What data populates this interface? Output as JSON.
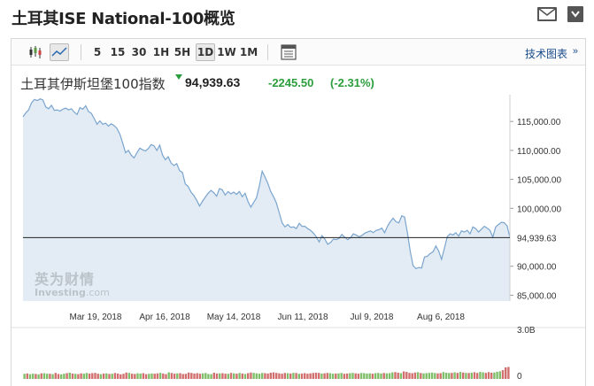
{
  "header": {
    "title": "土耳其ISE National-100概览",
    "mail_icon": "mail-icon",
    "expand_icon": "expand-arrow-icon"
  },
  "toolbar": {
    "chart_type_icons": [
      "candlestick-icon",
      "line-chart-icon"
    ],
    "intervals": [
      "5",
      "15",
      "30",
      "1H",
      "5H",
      "1D",
      "1W",
      "1M"
    ],
    "active_interval": "1D",
    "table_icon": "table-icon",
    "advanced_label": "技术图表",
    "advanced_arrow": "»"
  },
  "quote": {
    "name": "土耳其伊斯坦堡100指数",
    "price": "94,939.63",
    "change": "-2245.50",
    "change_pct": "(-2.31%)",
    "direction_icon": "down-triangle-icon"
  },
  "watermark": {
    "brand_cn": "英为财情",
    "brand_en": "Investing",
    "brand_suffix": ".com"
  },
  "colors": {
    "area_fill": "#e3ecf4",
    "line": "#7aa5cf",
    "last_line": "#222222",
    "up_bar": "#7fbf6a",
    "down_bar": "#d27070",
    "positive": "#2a9d3c"
  },
  "chart_data": {
    "type": "area",
    "x_ticks": [
      "Mar 19, 2018",
      "Apr 16, 2018",
      "May 14, 2018",
      "Jun 11, 2018",
      "Jul 9, 2018",
      "Aug 6, 2018"
    ],
    "y_ticks": [
      "115,000.00",
      "110,000.00",
      "105,000.00",
      "100,000.00",
      "90,000.00",
      "85,000.00"
    ],
    "y_tick_values": [
      115000,
      110000,
      105000,
      100000,
      90000,
      85000
    ],
    "ylim": [
      84000,
      119000
    ],
    "last_value": 94939.63,
    "last_value_label": "94,939.63",
    "volume_ticks": [
      "3.0B",
      "0"
    ],
    "volume_ylim": [
      0,
      3.0
    ],
    "series": [
      {
        "values": [
          115800,
          116500,
          117000,
          118200,
          118800,
          118600,
          118900,
          118700,
          117500,
          117200,
          117800,
          116900,
          117000,
          116800,
          117100,
          117300,
          117000,
          117200,
          116600,
          116200,
          117400,
          117100,
          117700,
          116700,
          116400,
          115500,
          114500,
          115100,
          114500,
          114700,
          114200,
          114600,
          114300,
          113800,
          112800,
          111300,
          109600,
          110000,
          109200,
          108700,
          109600,
          110400,
          110100,
          109900,
          110300,
          111000,
          110800,
          110000,
          110900,
          109200,
          108400,
          108900,
          107800,
          107400,
          107700,
          106500,
          106200,
          104200,
          103800,
          102800,
          102200,
          101400,
          100400,
          101200,
          101900,
          102600,
          103100,
          102700,
          102100,
          103400,
          103200,
          102300,
          102900,
          102500,
          102800,
          102400,
          102900,
          102000,
          102600,
          101200,
          100200,
          101000,
          101800,
          103900,
          106400,
          105400,
          104300,
          102900,
          102000,
          100900,
          99200,
          97500,
          96800,
          97200,
          96700,
          96800,
          96500,
          97400,
          96900,
          96900,
          96500,
          96200,
          95700,
          95100,
          94200,
          95300,
          94700,
          93800,
          94100,
          94700,
          94600,
          94800,
          95500,
          95000,
          94600,
          94900,
          95600,
          95400,
          95100,
          95300,
          95700,
          95900,
          96100,
          95800,
          96200,
          96300,
          96600,
          95800,
          96900,
          97700,
          98300,
          97700,
          97500,
          98700,
          98500,
          95800,
          92600,
          90100,
          89600,
          89800,
          89700,
          91600,
          91700,
          92200,
          92500,
          93500,
          92600,
          91200,
          93100,
          95100,
          95600,
          95400,
          95800,
          95200,
          96100,
          95900,
          96200,
          95600,
          96800,
          96500,
          95900,
          96400,
          96900,
          96600,
          96200,
          95000,
          96800,
          97200,
          97600,
          97500,
          97000,
          94939.63
        ]
      }
    ],
    "volume": {
      "values": [
        0.32,
        0.34,
        0.3,
        0.33,
        0.31,
        0.29,
        0.35,
        0.36,
        0.33,
        0.32,
        0.3,
        0.38,
        0.31,
        0.29,
        0.33,
        0.36,
        0.39,
        0.34,
        0.32,
        0.3,
        0.35,
        0.33,
        0.37,
        0.34,
        0.36,
        0.38,
        0.33,
        0.3,
        0.34,
        0.35,
        0.31,
        0.33,
        0.37,
        0.34,
        0.29,
        0.32,
        0.4,
        0.38,
        0.33,
        0.31,
        0.35,
        0.34,
        0.36,
        0.3,
        0.32,
        0.34,
        0.33,
        0.35,
        0.38,
        0.34,
        0.3,
        0.41,
        0.37,
        0.33,
        0.35,
        0.36,
        0.31,
        0.32,
        0.4,
        0.38,
        0.34,
        0.36,
        0.33,
        0.35,
        0.37,
        0.31,
        0.3,
        0.39,
        0.34,
        0.35,
        0.36,
        0.33,
        0.32,
        0.38,
        0.35,
        0.33,
        0.37,
        0.34,
        0.31,
        0.36,
        0.4,
        0.38,
        0.35,
        0.33,
        0.37,
        0.36,
        0.34,
        0.39,
        0.41,
        0.38,
        0.35,
        0.33,
        0.37,
        0.36,
        0.34,
        0.38,
        0.37,
        0.32,
        0.34,
        0.36,
        0.33,
        0.35,
        0.37,
        0.39,
        0.38,
        0.34,
        0.35,
        0.37,
        0.36,
        0.33,
        0.34,
        0.35,
        0.37,
        0.32,
        0.34,
        0.36,
        0.38,
        0.35,
        0.33,
        0.37,
        0.36,
        0.34,
        0.35,
        0.33,
        0.36,
        0.38,
        0.34,
        0.37,
        0.35,
        0.36,
        0.41,
        0.43,
        0.39,
        0.36,
        0.47,
        0.44,
        0.38,
        0.36,
        0.4,
        0.42,
        0.37,
        0.35,
        0.36,
        0.38,
        0.4,
        0.37,
        0.35,
        0.36,
        0.43,
        0.39,
        0.37,
        0.38,
        0.41,
        0.38,
        0.44,
        0.4,
        0.38,
        0.37,
        0.39,
        0.42,
        0.37,
        0.44,
        0.41,
        0.38,
        0.43,
        0.39,
        0.4,
        0.45,
        0.48,
        0.55,
        0.72,
        0.75
      ],
      "up": [
        1,
        0,
        1,
        1,
        0,
        1,
        0,
        1,
        1,
        0,
        1,
        0,
        0,
        1,
        1,
        0,
        1,
        0,
        1,
        0,
        0,
        1,
        1,
        0,
        0,
        0,
        0,
        1,
        0,
        1,
        0,
        1,
        0,
        0,
        0,
        0,
        0,
        1,
        0,
        0,
        1,
        1,
        0,
        0,
        1,
        1,
        0,
        0,
        1,
        0,
        0,
        1,
        0,
        0,
        1,
        0,
        0,
        0,
        0,
        0,
        0,
        0,
        0,
        1,
        1,
        1,
        1,
        0,
        0,
        1,
        0,
        0,
        1,
        0,
        1,
        0,
        1,
        0,
        1,
        0,
        0,
        1,
        1,
        1,
        1,
        0,
        0,
        0,
        0,
        0,
        0,
        0,
        0,
        1,
        0,
        1,
        0,
        1,
        0,
        0,
        0,
        0,
        0,
        0,
        0,
        1,
        0,
        0,
        1,
        1,
        0,
        1,
        1,
        0,
        0,
        1,
        1,
        0,
        0,
        1,
        1,
        1,
        1,
        0,
        1,
        1,
        1,
        0,
        1,
        1,
        1,
        0,
        0,
        1,
        0,
        0,
        0,
        0,
        0,
        1,
        0,
        1,
        1,
        1,
        1,
        1,
        0,
        0,
        1,
        1,
        1,
        0,
        1,
        0,
        1,
        0,
        1,
        0,
        1,
        0,
        0,
        1,
        1,
        0,
        0,
        0,
        1,
        1,
        1,
        0,
        0,
        0
      ]
    }
  }
}
